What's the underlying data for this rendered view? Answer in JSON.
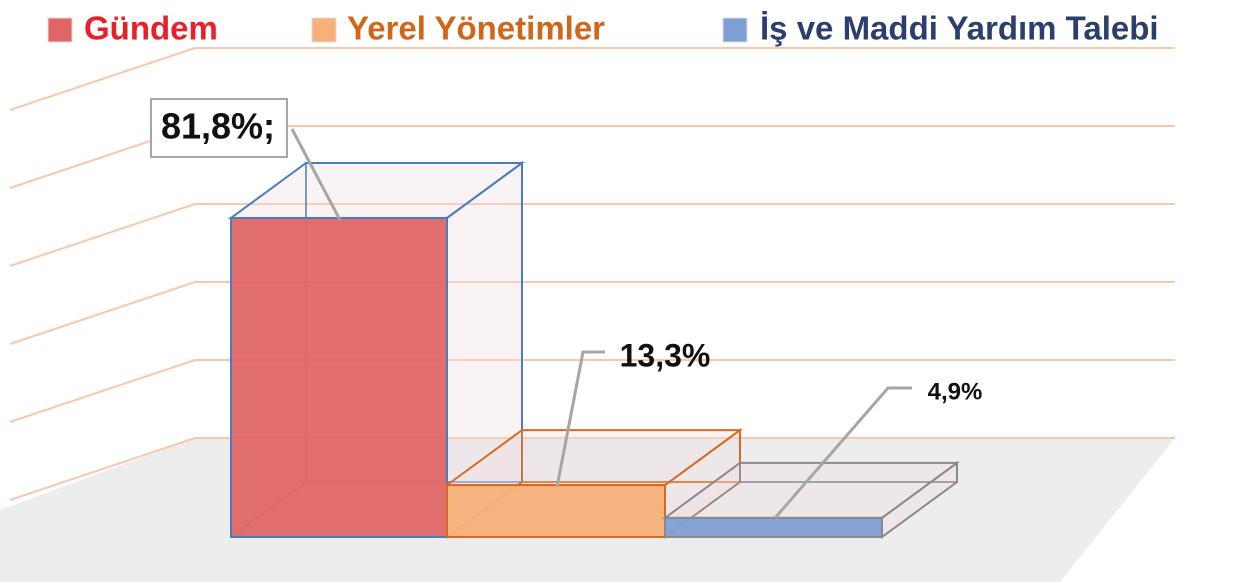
{
  "chart_data": {
    "type": "bar",
    "categories": [
      "Gündem",
      "Yerel Yönetimler",
      "İş ve Maddi Yardım Talebi"
    ],
    "values": [
      81.8,
      13.3,
      4.9
    ],
    "value_labels": [
      "81,8%;",
      "13,3%",
      "4,9%"
    ],
    "colors": [
      "#e06666",
      "#f7b07a",
      "#7f9fd4"
    ],
    "ylim": [
      0,
      100
    ],
    "yticks": [
      0,
      20,
      40,
      60,
      80,
      100
    ],
    "grid": true,
    "legend": "top"
  }
}
